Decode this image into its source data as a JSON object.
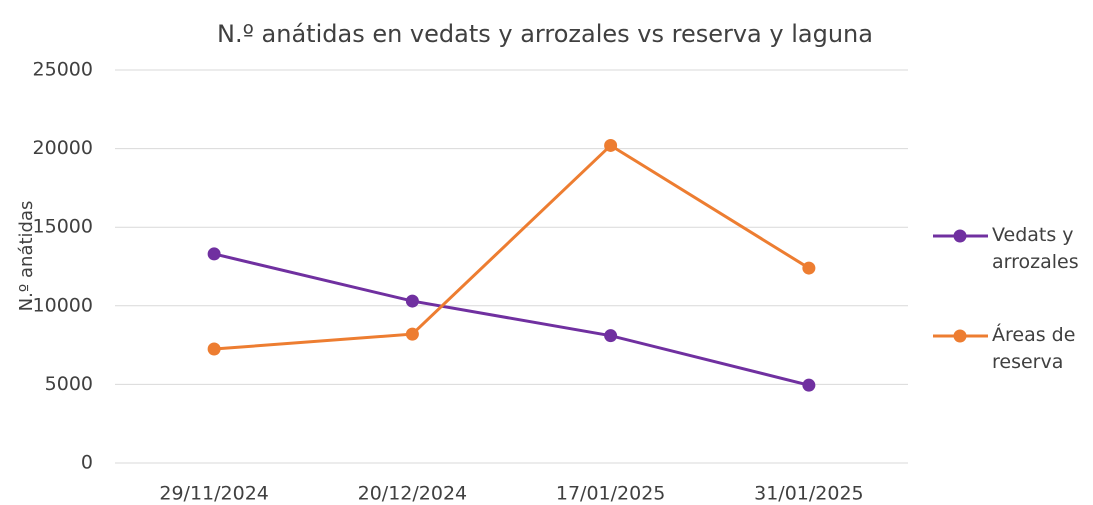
{
  "chart_data": {
    "type": "line",
    "title": "N.º anátidas en vedats y arrozales vs reserva y laguna",
    "y_label": "N.º anátidas",
    "categories": [
      "29/11/2024",
      "20/12/2024",
      "17/01/2025",
      "31/01/2025"
    ],
    "series": [
      {
        "name": "Vedats y arrozales",
        "color": "#7030a0",
        "values": [
          13300,
          10300,
          8100,
          4950
        ]
      },
      {
        "name": "Áreas de reserva",
        "color": "#ed7d31",
        "values": [
          7250,
          8200,
          20200,
          12400
        ]
      }
    ],
    "ylim": [
      0,
      25000
    ],
    "yticks": [
      0,
      5000,
      10000,
      15000,
      20000,
      25000
    ],
    "grid": true,
    "legend": "right"
  }
}
